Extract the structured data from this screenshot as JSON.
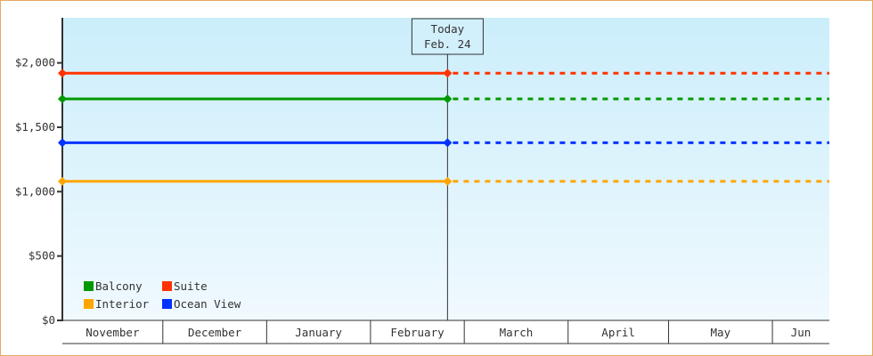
{
  "chart_data": {
    "type": "line",
    "x_range": [
      "Nov 1",
      "Jun 18"
    ],
    "ylim": [
      0,
      2350
    ],
    "yticks": [
      0,
      500,
      1000,
      1500,
      2000
    ],
    "ytick_labels": [
      "$0",
      "$500",
      "$1,000",
      "$1,500",
      "$2,000"
    ],
    "months": [
      {
        "label": "November",
        "days": 30
      },
      {
        "label": "December",
        "days": 31
      },
      {
        "label": "January",
        "days": 31
      },
      {
        "label": "February",
        "days": 28
      },
      {
        "label": "March",
        "days": 31
      },
      {
        "label": "April",
        "days": 30
      },
      {
        "label": "May",
        "days": 31
      },
      {
        "label": "Jun",
        "days": 17
      }
    ],
    "today": {
      "label": "Today",
      "date_label": "Feb. 24",
      "day_index": 115
    },
    "grid": false,
    "legend_position": "bottom-left",
    "series": [
      {
        "name": "Balcony",
        "color": "#009900",
        "points": [
          {
            "day_index": 0,
            "value": 1720
          },
          {
            "day_index": 115,
            "value": 1720
          }
        ],
        "projection": 1720
      },
      {
        "name": "Suite",
        "color": "#ff3300",
        "points": [
          {
            "day_index": 0,
            "value": 1920
          },
          {
            "day_index": 115,
            "value": 1920
          }
        ],
        "projection": 1920
      },
      {
        "name": "Interior",
        "color": "#ffa500",
        "points": [
          {
            "day_index": 0,
            "value": 1080
          },
          {
            "day_index": 115,
            "value": 1080
          }
        ],
        "projection": 1080
      },
      {
        "name": "Ocean View",
        "color": "#0033ff",
        "points": [
          {
            "day_index": 0,
            "value": 1380
          },
          {
            "day_index": 115,
            "value": 1380
          }
        ],
        "projection": 1380
      }
    ]
  }
}
